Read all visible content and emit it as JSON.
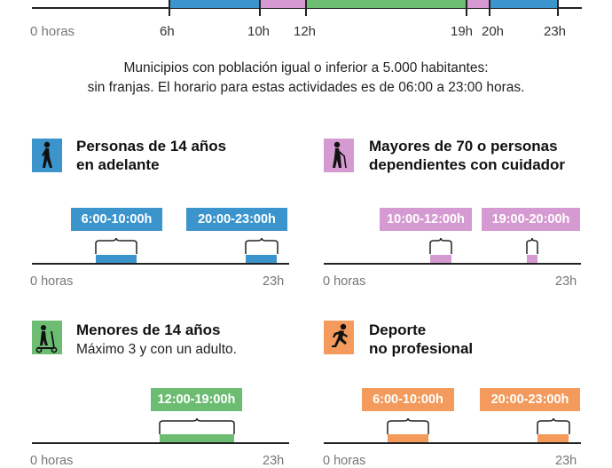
{
  "colors": {
    "blue": "#3b94cc",
    "pink": "#d59ad1",
    "green": "#6cbd72",
    "orange": "#f39a5c",
    "axis": "#222222"
  },
  "top_timeline": {
    "labels": [
      "0 horas",
      "6h",
      "10h",
      "12h",
      "19h",
      "20h",
      "23h"
    ]
  },
  "note": {
    "line1": "Municipios con población igual o inferior a 5.000 habitantes:",
    "line2": "sin franjas. El horario para estas actividades es de 06:00 a 23:00 horas."
  },
  "categories": [
    {
      "icon": "walking-person-icon",
      "title_line1": "Personas de 14 años",
      "title_line2": "en adelante",
      "subtitle": "",
      "color": "#3b94cc",
      "slots": [
        {
          "label": "6:00-10:00h",
          "start_h": 6,
          "end_h": 10
        },
        {
          "label": "20:00-23:00h",
          "start_h": 20,
          "end_h": 23
        }
      ],
      "axis_start": "0 horas",
      "axis_end": "23h"
    },
    {
      "icon": "elderly-person-cane-icon",
      "title_line1": "Mayores de 70 o personas",
      "title_line2": "dependientes con cuidador",
      "subtitle": "",
      "color": "#d59ad1",
      "slots": [
        {
          "label": "10:00-12:00h",
          "start_h": 10,
          "end_h": 12
        },
        {
          "label": "19:00-20:00h",
          "start_h": 19,
          "end_h": 20
        }
      ],
      "axis_start": "0 horas",
      "axis_end": "23h"
    },
    {
      "icon": "child-scooter-icon",
      "title_line1": "Menores de 14 años",
      "title_line2": "",
      "subtitle": "Máximo 3 y con un adulto.",
      "color": "#6cbd72",
      "slots": [
        {
          "label": "12:00-19:00h",
          "start_h": 12,
          "end_h": 19
        }
      ],
      "axis_start": "0 horas",
      "axis_end": "23h"
    },
    {
      "icon": "runner-icon",
      "title_line1": "Deporte",
      "title_line2": "no profesional",
      "subtitle": "",
      "color": "#f39a5c",
      "slots": [
        {
          "label": "6:00-10:00h",
          "start_h": 6,
          "end_h": 10
        },
        {
          "label": "20:00-23:00h",
          "start_h": 20,
          "end_h": 23
        }
      ],
      "axis_start": "0 horas",
      "axis_end": "23h"
    }
  ]
}
